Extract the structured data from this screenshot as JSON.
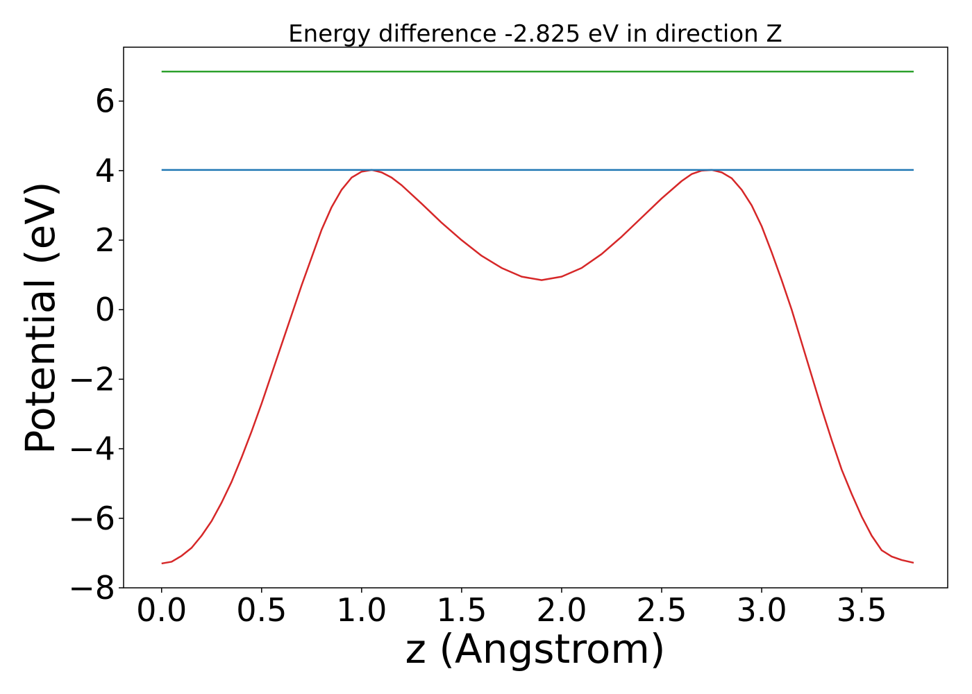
{
  "chart_data": {
    "type": "line",
    "title": "Energy difference -2.825 eV in direction Z",
    "xlabel": "z (Angstrom)",
    "ylabel": "Potential (eV)",
    "xlim": [
      -0.19,
      3.93
    ],
    "ylim": [
      -8.0,
      7.55
    ],
    "xticks": [
      0.0,
      0.5,
      1.0,
      1.5,
      2.0,
      2.5,
      3.0,
      3.5
    ],
    "xtick_labels": [
      "0.0",
      "0.5",
      "1.0",
      "1.5",
      "2.0",
      "2.5",
      "3.0",
      "3.5"
    ],
    "yticks": [
      -8,
      -6,
      -4,
      -2,
      0,
      2,
      4,
      6
    ],
    "ytick_labels": [
      "−8",
      "−6",
      "−4",
      "−2",
      "0",
      "2",
      "4",
      "6"
    ],
    "grid": false,
    "series": [
      {
        "name": "potential",
        "color": "#d62728",
        "x": [
          0.0,
          0.05,
          0.1,
          0.15,
          0.2,
          0.25,
          0.3,
          0.35,
          0.4,
          0.45,
          0.5,
          0.55,
          0.6,
          0.65,
          0.7,
          0.75,
          0.8,
          0.85,
          0.9,
          0.95,
          1.0,
          1.05,
          1.1,
          1.15,
          1.2,
          1.3,
          1.4,
          1.5,
          1.6,
          1.7,
          1.8,
          1.9,
          2.0,
          2.1,
          2.2,
          2.3,
          2.4,
          2.5,
          2.6,
          2.65,
          2.7,
          2.75,
          2.8,
          2.85,
          2.9,
          2.95,
          3.0,
          3.05,
          3.1,
          3.15,
          3.2,
          3.25,
          3.3,
          3.35,
          3.4,
          3.45,
          3.5,
          3.55,
          3.6,
          3.65,
          3.7,
          3.76
        ],
        "y": [
          -7.3,
          -7.25,
          -7.08,
          -6.85,
          -6.5,
          -6.08,
          -5.55,
          -4.95,
          -4.25,
          -3.5,
          -2.7,
          -1.85,
          -1.0,
          -0.15,
          0.7,
          1.5,
          2.3,
          2.95,
          3.45,
          3.8,
          3.97,
          4.02,
          3.95,
          3.8,
          3.58,
          3.05,
          2.5,
          2.0,
          1.55,
          1.2,
          0.95,
          0.85,
          0.95,
          1.2,
          1.6,
          2.1,
          2.65,
          3.2,
          3.7,
          3.9,
          4.0,
          4.02,
          3.95,
          3.78,
          3.45,
          3.0,
          2.4,
          1.65,
          0.85,
          0.0,
          -0.95,
          -1.9,
          -2.85,
          -3.75,
          -4.6,
          -5.3,
          -5.95,
          -6.5,
          -6.92,
          -7.1,
          -7.2,
          -7.28
        ]
      },
      {
        "name": "level-1",
        "color": "#1f77b4",
        "x": [
          0.0,
          3.76
        ],
        "y": [
          4.02,
          4.02
        ]
      },
      {
        "name": "level-2",
        "color": "#2ca02c",
        "x": [
          0.0,
          3.76
        ],
        "y": [
          6.85,
          6.85
        ]
      }
    ]
  }
}
